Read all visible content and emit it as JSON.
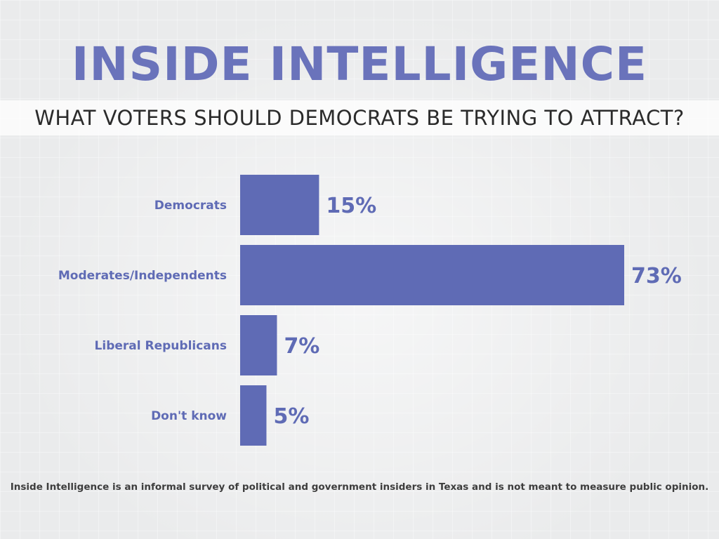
{
  "header": {
    "title": "INSIDE INTELLIGENCE",
    "subtitle": "WHAT VOTERS SHOULD DEMOCRATS BE TRYING TO ATTRACT?"
  },
  "chart_data": {
    "type": "bar",
    "orientation": "horizontal",
    "title": "WHAT VOTERS SHOULD DEMOCRATS BE TRYING TO ATTRACT?",
    "categories": [
      "Democrats",
      "Moderates/Independents",
      "Liberal Republicans",
      "Don't know"
    ],
    "values": [
      15,
      73,
      7,
      5
    ],
    "value_labels": [
      "15%",
      "73%",
      "7%",
      "5%"
    ],
    "xlim": [
      0,
      73
    ],
    "xlabel": "",
    "ylabel": "",
    "grid": false,
    "bar_color": "#5f6bb5",
    "label_color": "#5f6bb5"
  },
  "footer": {
    "note": "Inside Intelligence is an informal survey of political and government insiders in Texas and is not meant to measure public opinion."
  }
}
